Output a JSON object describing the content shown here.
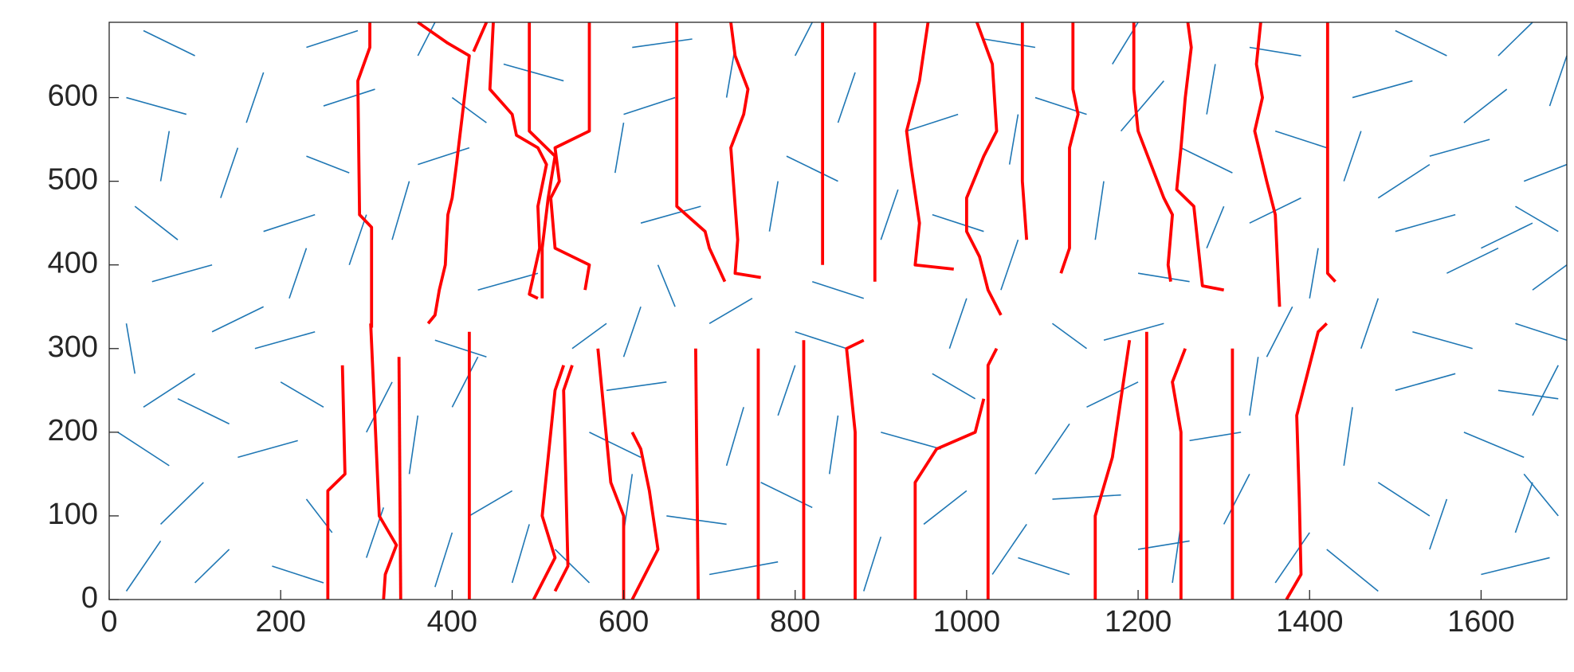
{
  "chart_data": {
    "type": "segments",
    "xlim": [
      0,
      1700
    ],
    "ylim": [
      0,
      690
    ],
    "xticks": [
      0,
      200,
      400,
      600,
      800,
      1000,
      1200,
      1400,
      1600
    ],
    "yticks": [
      0,
      100,
      200,
      300,
      400,
      500,
      600
    ],
    "segments": {
      "color": "#1f77b4",
      "lines": [
        [
          20,
          10,
          60,
          70
        ],
        [
          190,
          40,
          250,
          20
        ],
        [
          380,
          15,
          400,
          80
        ],
        [
          520,
          60,
          560,
          20
        ],
        [
          700,
          30,
          780,
          45
        ],
        [
          880,
          10,
          900,
          75
        ],
        [
          1060,
          50,
          1120,
          30
        ],
        [
          1240,
          20,
          1250,
          90
        ],
        [
          1420,
          60,
          1480,
          10
        ],
        [
          1600,
          30,
          1680,
          50
        ],
        [
          60,
          90,
          110,
          140
        ],
        [
          230,
          120,
          260,
          80
        ],
        [
          420,
          100,
          470,
          130
        ],
        [
          600,
          80,
          610,
          150
        ],
        [
          760,
          140,
          820,
          110
        ],
        [
          950,
          90,
          1000,
          130
        ],
        [
          1100,
          120,
          1180,
          125
        ],
        [
          1300,
          90,
          1330,
          150
        ],
        [
          1480,
          140,
          1540,
          100
        ],
        [
          1640,
          80,
          1660,
          140
        ],
        [
          10,
          200,
          70,
          160
        ],
        [
          150,
          170,
          220,
          190
        ],
        [
          350,
          150,
          360,
          220
        ],
        [
          560,
          200,
          620,
          170
        ],
        [
          720,
          160,
          740,
          230
        ],
        [
          900,
          200,
          970,
          180
        ],
        [
          1080,
          150,
          1120,
          210
        ],
        [
          1260,
          190,
          1320,
          200
        ],
        [
          1440,
          160,
          1450,
          230
        ],
        [
          1580,
          200,
          1650,
          170
        ],
        [
          40,
          230,
          100,
          270
        ],
        [
          200,
          260,
          250,
          230
        ],
        [
          400,
          230,
          430,
          290
        ],
        [
          580,
          250,
          650,
          260
        ],
        [
          780,
          220,
          800,
          280
        ],
        [
          960,
          270,
          1010,
          240
        ],
        [
          1140,
          230,
          1200,
          260
        ],
        [
          1330,
          220,
          1340,
          290
        ],
        [
          1500,
          250,
          1570,
          270
        ],
        [
          1660,
          220,
          1690,
          280
        ],
        [
          20,
          330,
          30,
          270
        ],
        [
          170,
          300,
          240,
          320
        ],
        [
          380,
          310,
          440,
          290
        ],
        [
          600,
          290,
          620,
          350
        ],
        [
          800,
          320,
          860,
          300
        ],
        [
          980,
          300,
          1000,
          360
        ],
        [
          1160,
          310,
          1230,
          330
        ],
        [
          1350,
          290,
          1380,
          350
        ],
        [
          1520,
          320,
          1590,
          300
        ],
        [
          1640,
          330,
          1700,
          310
        ],
        [
          50,
          380,
          120,
          400
        ],
        [
          210,
          360,
          230,
          420
        ],
        [
          430,
          370,
          500,
          390
        ],
        [
          640,
          400,
          660,
          350
        ],
        [
          820,
          380,
          880,
          360
        ],
        [
          1040,
          370,
          1060,
          430
        ],
        [
          1200,
          390,
          1260,
          380
        ],
        [
          1400,
          360,
          1410,
          420
        ],
        [
          1560,
          390,
          1620,
          420
        ],
        [
          1660,
          370,
          1700,
          400
        ],
        [
          30,
          470,
          80,
          430
        ],
        [
          180,
          440,
          240,
          460
        ],
        [
          330,
          430,
          350,
          500
        ],
        [
          620,
          450,
          690,
          470
        ],
        [
          770,
          440,
          780,
          500
        ],
        [
          960,
          460,
          1020,
          440
        ],
        [
          1150,
          430,
          1160,
          500
        ],
        [
          1330,
          450,
          1390,
          480
        ],
        [
          1500,
          440,
          1570,
          460
        ],
        [
          1640,
          470,
          1690,
          440
        ],
        [
          60,
          500,
          70,
          560
        ],
        [
          230,
          530,
          280,
          510
        ],
        [
          360,
          520,
          420,
          540
        ],
        [
          590,
          510,
          600,
          570
        ],
        [
          790,
          530,
          850,
          500
        ],
        [
          1050,
          520,
          1060,
          580
        ],
        [
          1250,
          540,
          1310,
          510
        ],
        [
          1440,
          500,
          1460,
          560
        ],
        [
          1540,
          530,
          1610,
          550
        ],
        [
          1650,
          500,
          1700,
          520
        ],
        [
          20,
          600,
          90,
          580
        ],
        [
          160,
          570,
          180,
          630
        ],
        [
          400,
          600,
          440,
          570
        ],
        [
          600,
          580,
          660,
          600
        ],
        [
          850,
          570,
          870,
          630
        ],
        [
          1080,
          600,
          1140,
          580
        ],
        [
          1280,
          580,
          1290,
          640
        ],
        [
          1450,
          600,
          1520,
          620
        ],
        [
          1580,
          570,
          1630,
          610
        ],
        [
          1680,
          590,
          1700,
          650
        ],
        [
          40,
          680,
          100,
          650
        ],
        [
          230,
          660,
          290,
          680
        ],
        [
          360,
          650,
          380,
          690
        ],
        [
          610,
          660,
          680,
          670
        ],
        [
          800,
          650,
          820,
          690
        ],
        [
          1020,
          670,
          1080,
          660
        ],
        [
          1170,
          640,
          1200,
          690
        ],
        [
          1330,
          660,
          1390,
          650
        ],
        [
          1500,
          680,
          1560,
          650
        ],
        [
          1620,
          650,
          1660,
          690
        ],
        [
          100,
          20,
          140,
          60
        ],
        [
          300,
          50,
          320,
          110
        ],
        [
          470,
          20,
          490,
          90
        ],
        [
          650,
          100,
          720,
          90
        ],
        [
          840,
          150,
          850,
          220
        ],
        [
          1030,
          30,
          1070,
          90
        ],
        [
          1200,
          60,
          1260,
          70
        ],
        [
          1360,
          20,
          1400,
          80
        ],
        [
          1540,
          60,
          1560,
          120
        ],
        [
          1690,
          100,
          1650,
          150
        ],
        [
          120,
          320,
          180,
          350
        ],
        [
          280,
          400,
          300,
          460
        ],
        [
          540,
          300,
          580,
          330
        ],
        [
          700,
          330,
          750,
          360
        ],
        [
          900,
          430,
          920,
          490
        ],
        [
          1100,
          330,
          1140,
          300
        ],
        [
          1280,
          420,
          1300,
          470
        ],
        [
          1460,
          300,
          1480,
          360
        ],
        [
          1620,
          250,
          1690,
          240
        ],
        [
          130,
          480,
          150,
          540
        ],
        [
          250,
          590,
          310,
          610
        ],
        [
          460,
          640,
          530,
          620
        ],
        [
          720,
          600,
          730,
          660
        ],
        [
          930,
          560,
          990,
          580
        ],
        [
          1180,
          560,
          1230,
          620
        ],
        [
          1360,
          560,
          1420,
          540
        ],
        [
          1600,
          420,
          1660,
          450
        ],
        [
          80,
          240,
          140,
          210
        ],
        [
          1480,
          480,
          1540,
          520
        ],
        [
          300,
          200,
          330,
          260
        ]
      ]
    },
    "series": [
      {
        "color": "#ff0000",
        "x": [
          304,
          304,
          290,
          292,
          306,
          306
        ],
        "values": [
          690,
          660,
          620,
          460,
          445,
          325
        ]
      },
      {
        "color": "#ff0000",
        "x": [
          360,
          395,
          420,
          412,
          405,
          400,
          395,
          392,
          385,
          380,
          372
        ],
        "values": [
          690,
          665,
          650,
          580,
          520,
          480,
          460,
          400,
          370,
          340,
          330
        ]
      },
      {
        "color": "#ff0000",
        "x": [
          440,
          425
        ],
        "values": [
          690,
          655
        ]
      },
      {
        "color": "#ff0000",
        "x": [
          448,
          444,
          470,
          475,
          500,
          510,
          500,
          502,
          490,
          500
        ],
        "values": [
          690,
          610,
          580,
          555,
          540,
          520,
          470,
          420,
          365,
          360
        ]
      },
      {
        "color": "#ff0000",
        "x": [
          490,
          490,
          520,
          512,
          505,
          505
        ],
        "values": [
          690,
          560,
          530,
          480,
          420,
          360
        ]
      },
      {
        "color": "#ff0000",
        "x": [
          560,
          560,
          520,
          525,
          515,
          520,
          560,
          555
        ],
        "values": [
          690,
          560,
          540,
          500,
          480,
          420,
          400,
          370
        ]
      },
      {
        "color": "#ff0000",
        "x": [
          662,
          662,
          695,
          700,
          718
        ],
        "values": [
          690,
          470,
          440,
          420,
          380
        ]
      },
      {
        "color": "#ff0000",
        "x": [
          725,
          730,
          745,
          740,
          725,
          733,
          730,
          760
        ],
        "values": [
          690,
          650,
          610,
          580,
          540,
          430,
          390,
          385
        ]
      },
      {
        "color": "#ff0000",
        "x": [
          832,
          832
        ],
        "values": [
          690,
          400
        ]
      },
      {
        "color": "#ff0000",
        "x": [
          893,
          893
        ],
        "values": [
          690,
          380
        ]
      },
      {
        "color": "#ff0000",
        "x": [
          955,
          945,
          930,
          935,
          945,
          940,
          985
        ],
        "values": [
          690,
          620,
          560,
          520,
          450,
          400,
          395
        ]
      },
      {
        "color": "#ff0000",
        "x": [
          1012,
          1030,
          1035,
          1020,
          1000,
          1000,
          1015,
          1025,
          1040
        ],
        "values": [
          690,
          640,
          560,
          530,
          480,
          440,
          410,
          370,
          340
        ]
      },
      {
        "color": "#ff0000",
        "x": [
          1065,
          1065,
          1070
        ],
        "values": [
          690,
          500,
          430
        ]
      },
      {
        "color": "#ff0000",
        "x": [
          1124,
          1124,
          1130,
          1120,
          1120,
          1110
        ],
        "values": [
          690,
          610,
          580,
          540,
          420,
          390
        ]
      },
      {
        "color": "#ff0000",
        "x": [
          1195,
          1195,
          1200,
          1230,
          1240,
          1235,
          1238
        ],
        "values": [
          690,
          610,
          560,
          480,
          460,
          400,
          380
        ]
      },
      {
        "color": "#ff0000",
        "x": [
          1258,
          1262,
          1255,
          1250,
          1245,
          1265,
          1275,
          1300
        ],
        "values": [
          690,
          660,
          600,
          540,
          490,
          470,
          375,
          370
        ]
      },
      {
        "color": "#ff0000",
        "x": [
          1343,
          1338,
          1345,
          1336,
          1350,
          1360,
          1365
        ],
        "values": [
          690,
          640,
          600,
          560,
          500,
          460,
          350
        ]
      },
      {
        "color": "#ff0000",
        "x": [
          1421,
          1421,
          1430
        ],
        "values": [
          690,
          390,
          380
        ]
      },
      {
        "color": "#ff0000",
        "x": [
          255,
          255,
          275,
          272
        ],
        "values": [
          0,
          130,
          150,
          280
        ]
      },
      {
        "color": "#ff0000",
        "x": [
          320,
          322,
          335,
          315,
          305
        ],
        "values": [
          0,
          30,
          65,
          100,
          330
        ]
      },
      {
        "color": "#ff0000",
        "x": [
          340,
          338
        ],
        "values": [
          0,
          290
        ]
      },
      {
        "color": "#ff0000",
        "x": [
          420,
          420
        ],
        "values": [
          0,
          320
        ]
      },
      {
        "color": "#ff0000",
        "x": [
          495,
          510,
          520,
          505,
          520,
          530
        ],
        "values": [
          0,
          30,
          50,
          100,
          250,
          280
        ]
      },
      {
        "color": "#ff0000",
        "x": [
          520,
          535,
          530,
          540
        ],
        "values": [
          10,
          40,
          250,
          280
        ]
      },
      {
        "color": "#ff0000",
        "x": [
          600,
          600,
          585,
          570
        ],
        "values": [
          0,
          100,
          140,
          300
        ]
      },
      {
        "color": "#ff0000",
        "x": [
          610,
          640,
          630,
          620,
          610
        ],
        "values": [
          0,
          60,
          130,
          180,
          200
        ]
      },
      {
        "color": "#ff0000",
        "x": [
          687,
          684
        ],
        "values": [
          0,
          300
        ]
      },
      {
        "color": "#ff0000",
        "x": [
          757,
          757
        ],
        "values": [
          0,
          300
        ]
      },
      {
        "color": "#ff0000",
        "x": [
          810,
          810
        ],
        "values": [
          0,
          310
        ]
      },
      {
        "color": "#ff0000",
        "x": [
          870,
          870,
          860,
          880
        ],
        "values": [
          0,
          200,
          300,
          310
        ]
      },
      {
        "color": "#ff0000",
        "x": [
          940,
          940,
          965,
          1010,
          1020
        ],
        "values": [
          0,
          140,
          180,
          200,
          240
        ]
      },
      {
        "color": "#ff0000",
        "x": [
          1025,
          1025,
          1035
        ],
        "values": [
          0,
          280,
          300
        ]
      },
      {
        "color": "#ff0000",
        "x": [
          1150,
          1150,
          1170,
          1190
        ],
        "values": [
          0,
          100,
          170,
          310
        ]
      },
      {
        "color": "#ff0000",
        "x": [
          1210,
          1210
        ],
        "values": [
          0,
          320
        ]
      },
      {
        "color": "#ff0000",
        "x": [
          1250,
          1250,
          1240,
          1255
        ],
        "values": [
          0,
          200,
          260,
          300
        ]
      },
      {
        "color": "#ff0000",
        "x": [
          1310,
          1310
        ],
        "values": [
          0,
          300
        ]
      },
      {
        "color": "#ff0000",
        "x": [
          1373,
          1390,
          1388,
          1385,
          1410,
          1420
        ],
        "values": [
          0,
          30,
          120,
          220,
          320,
          330
        ]
      }
    ]
  }
}
